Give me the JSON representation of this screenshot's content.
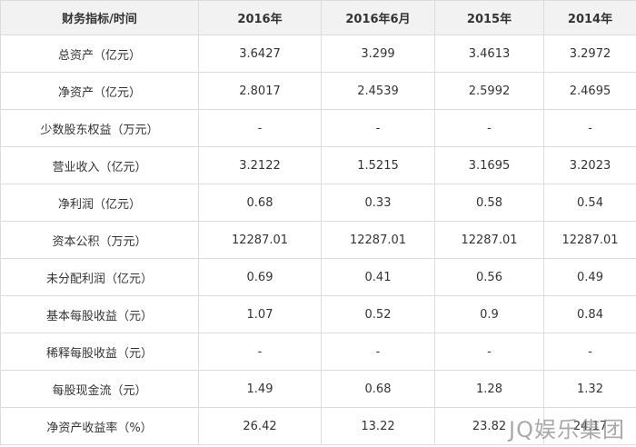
{
  "table": {
    "header": [
      "财务指标/时间",
      "2016年",
      "2016年6月",
      "2015年",
      "2014年"
    ],
    "rows": [
      [
        "总资产（亿元）",
        "3.6427",
        "3.299",
        "3.4613",
        "3.2972"
      ],
      [
        "净资产（亿元）",
        "2.8017",
        "2.4539",
        "2.5992",
        "2.4695"
      ],
      [
        "少数股东权益（万元）",
        "-",
        "-",
        "-",
        "-"
      ],
      [
        "营业收入（亿元）",
        "3.2122",
        "1.5215",
        "3.1695",
        "3.2023"
      ],
      [
        "净利润（亿元）",
        "0.68",
        "0.33",
        "0.58",
        "0.54"
      ],
      [
        "资本公积（万元）",
        "12287.01",
        "12287.01",
        "12287.01",
        "12287.01"
      ],
      [
        "未分配利润（亿元）",
        "0.69",
        "0.41",
        "0.56",
        "0.49"
      ],
      [
        "基本每股收益（元）",
        "1.07",
        "0.52",
        "0.9",
        "0.84"
      ],
      [
        "稀释每股收益（元）",
        "-",
        "-",
        "-",
        "-"
      ],
      [
        "每股现金流（元）",
        "1.49",
        "0.68",
        "1.28",
        "1.32"
      ],
      [
        "净资产收益率（%）",
        "26.42",
        "13.22",
        "23.82",
        "24.17"
      ]
    ]
  },
  "watermark": "JQ娱乐集团"
}
